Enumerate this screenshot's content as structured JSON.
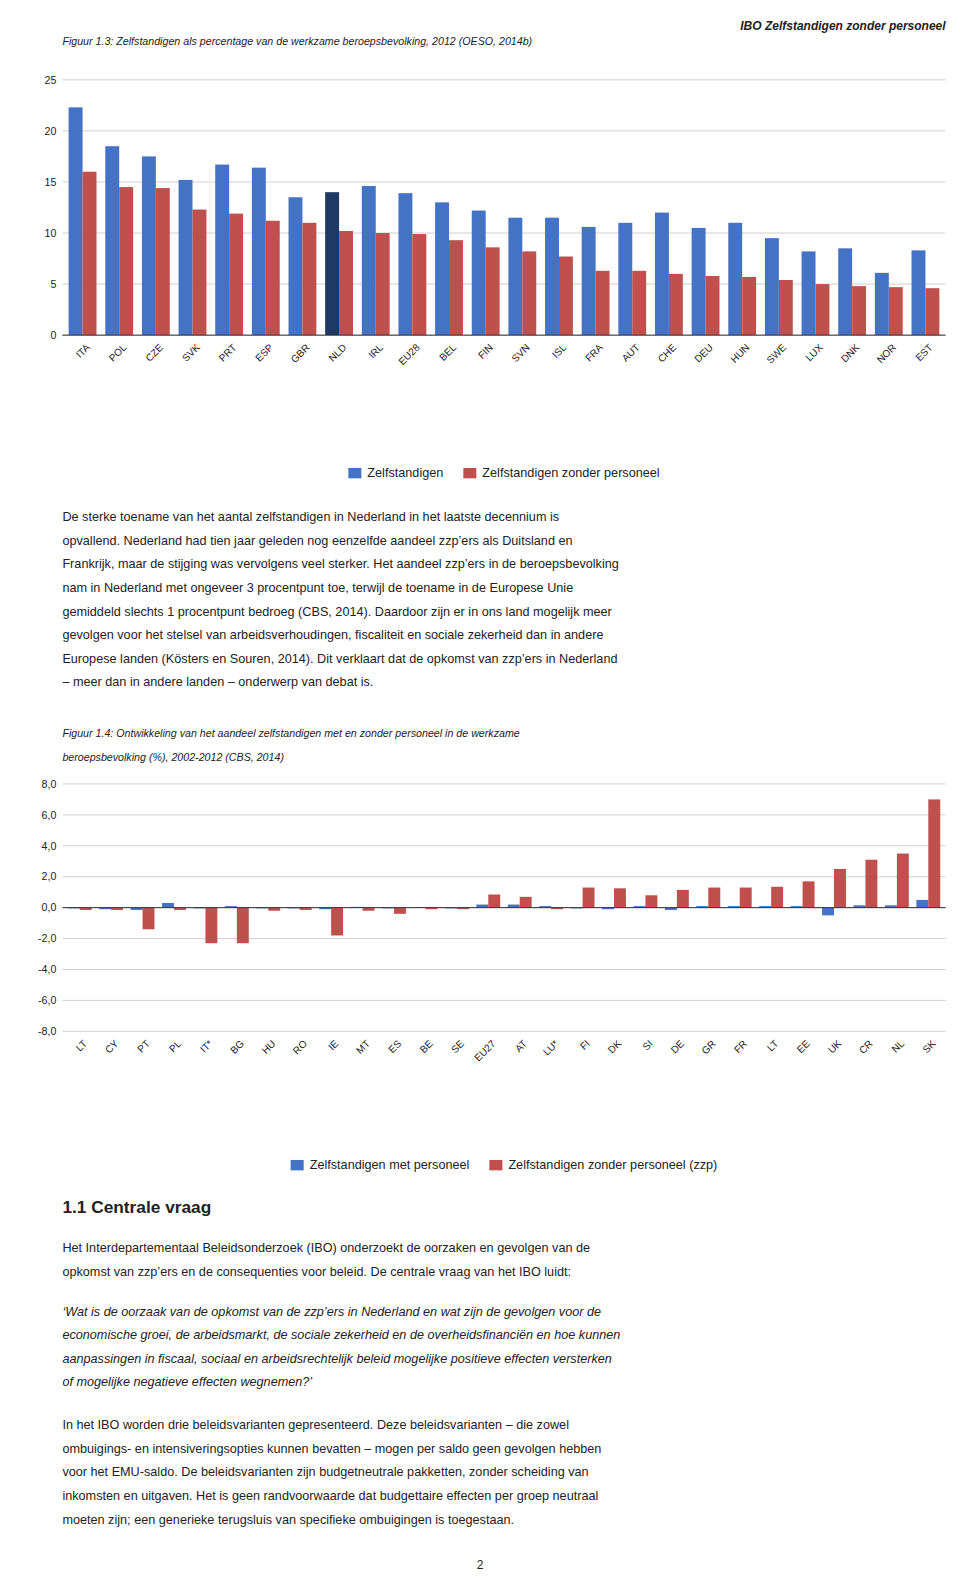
{
  "header": "IBO Zelfstandigen zonder personeel",
  "chart_data": [
    {
      "type": "bar",
      "title": "Figuur 1.3: Zelfstandigen als percentage van de werkzame beroepsbevolking, 2012 (OESO, 2014b)",
      "categories": [
        "ITA",
        "POL",
        "CZE",
        "SVK",
        "PRT",
        "ESP",
        "GBR",
        "NLD",
        "IRL",
        "EU28",
        "BEL",
        "FIN",
        "SVN",
        "ISL",
        "FRA",
        "AUT",
        "CHE",
        "DEU",
        "HUN",
        "SWE",
        "LUX",
        "DNK",
        "NOR",
        "EST"
      ],
      "series": [
        {
          "name": "Zelfstandigen",
          "color": "#4472C4",
          "colors": [
            "#4472C4",
            "#4472C4",
            "#4472C4",
            "#4472C4",
            "#4472C4",
            "#4472C4",
            "#4472C4",
            "#1F3864",
            "#4472C4",
            "#4472C4",
            "#4472C4",
            "#4472C4",
            "#4472C4",
            "#4472C4",
            "#4472C4",
            "#4472C4",
            "#4472C4",
            "#4472C4",
            "#4472C4",
            "#4472C4",
            "#4472C4",
            "#4472C4",
            "#4472C4",
            "#4472C4"
          ],
          "values": [
            22.3,
            18.5,
            17.5,
            15.2,
            16.7,
            16.4,
            13.5,
            14.0,
            14.6,
            13.9,
            13.0,
            12.2,
            11.5,
            11.5,
            10.6,
            11.0,
            12.0,
            10.5,
            11.0,
            9.5,
            8.2,
            8.5,
            6.1,
            8.3
          ]
        },
        {
          "name": "Zelfstandigen zonder personeel",
          "color": "#C0504D",
          "values": [
            16.0,
            14.5,
            14.4,
            12.3,
            11.9,
            11.2,
            11.0,
            10.2,
            10.0,
            9.9,
            9.3,
            8.6,
            8.2,
            7.7,
            6.3,
            6.3,
            6.0,
            5.8,
            5.7,
            5.4,
            5.0,
            4.8,
            4.7,
            4.6
          ]
        }
      ],
      "ylim": [
        0,
        25
      ],
      "yticks": [
        0,
        5,
        10,
        15,
        20,
        25
      ],
      "grid": true,
      "legend": "bottom"
    },
    {
      "type": "bar",
      "title": "Figuur 1.4: Ontwikkeling van het aandeel zelfstandigen met en zonder personeel in de werkzame",
      "subtitle": "beroepsbevolking (%), 2002-2012 (CBS, 2014)",
      "categories": [
        "LT",
        "CY",
        "PT",
        "PL",
        "IT*",
        "BG",
        "HU",
        "RO",
        "IE",
        "MT",
        "ES",
        "BE",
        "SE",
        "EU27",
        "AT",
        "LU*",
        "FI",
        "DK",
        "SI",
        "DE",
        "GR",
        "FR",
        "LT",
        "EE",
        "UK",
        "CR",
        "NL",
        "SK"
      ],
      "series": [
        {
          "name": "Zelfstandigen met personeel",
          "color": "#4472C4",
          "values": [
            -0.05,
            -0.1,
            -0.15,
            0.3,
            -0.05,
            0.1,
            -0.05,
            -0.05,
            -0.1,
            0.05,
            -0.05,
            -0.02,
            -0.05,
            0.2,
            0.2,
            0.1,
            -0.05,
            -0.1,
            0.1,
            -0.15,
            0.1,
            0.1,
            0.1,
            0.1,
            -0.5,
            0.15,
            0.15,
            0.5
          ]
        },
        {
          "name": "Zelfstandigen zonder personeel (zzp)",
          "color": "#C0504D",
          "values": [
            -0.15,
            -0.15,
            -1.4,
            -0.15,
            -2.3,
            -2.3,
            -0.2,
            -0.15,
            -1.8,
            -0.2,
            -0.4,
            -0.1,
            -0.1,
            0.85,
            0.7,
            -0.1,
            1.3,
            1.25,
            0.8,
            1.15,
            1.3,
            1.3,
            1.35,
            1.7,
            2.5,
            3.1,
            3.5,
            7.0
          ]
        }
      ],
      "ylim": [
        -8.0,
        8.0
      ],
      "yticks": [
        {
          "value": -8.0,
          "label": "-8,0"
        },
        {
          "value": -6.0,
          "label": "-6,0"
        },
        {
          "value": -4.0,
          "label": "-4,0"
        },
        {
          "value": -2.0,
          "label": "-2,0"
        },
        {
          "value": 0.0,
          "label": "0,0"
        },
        {
          "value": 2.0,
          "label": "2,0"
        },
        {
          "value": 4.0,
          "label": "4,0"
        },
        {
          "value": 6.0,
          "label": "6,0"
        },
        {
          "value": 8.0,
          "label": "8,0"
        }
      ],
      "grid": true,
      "legend": "bottom"
    }
  ],
  "text1_lines": [
    "De sterke toename van het aantal zelfstandigen in Nederland in het laatste decennium is",
    "opvallend. Nederland had tien jaar geleden nog eenzelfde aandeel zzp’ers als Duitsland en",
    "Frankrijk, maar de stijging was vervolgens veel sterker. Het aandeel zzp’ers in de beroepsbevolking",
    "nam in Nederland met ongeveer 3 procentpunt toe, terwijl de toename in de Europese Unie",
    "gemiddeld slechts 1 procentpunt bedroeg (CBS, 2014). Daardoor zijn er in ons land mogelijk meer",
    "gevolgen voor het stelsel van arbeidsverhoudingen, fiscaliteit en sociale zekerheid dan in andere",
    "Europese landen (Kösters en Souren, 2014). Dit verklaart dat de opkomst van zzp’ers in Nederland",
    "– meer dan in andere landen – onderwerp van debat is."
  ],
  "section_title": "1.1 Centrale vraag",
  "text3_lines": [
    "Het Interdepartementaal Beleidsonderzoek (IBO) onderzoekt de oorzaken en gevolgen van de",
    "opkomst van zzp’ers en de consequenties voor beleid. De centrale vraag van het IBO luidt:"
  ],
  "text4_lines": [
    "‘Wat is de oorzaak van de opkomst van de zzp’ers in Nederland en wat zijn de gevolgen voor de",
    "economische groei, de arbeidsmarkt, de sociale zekerheid en de overheidsfinanciën en hoe kunnen",
    "aanpassingen in fiscaal, sociaal en arbeidsrechtelijk beleid mogelijke positieve effecten versterken",
    "of mogelijke negatieve effecten wegnemen?’"
  ],
  "text5_lines": [
    "In het IBO worden drie beleidsvarianten gepresenteerd. Deze beleidsvarianten – die zowel",
    "ombuigings- en intensiveringsopties kunnen bevatten – mogen per saldo geen gevolgen hebben",
    "voor het EMU-saldo. De beleidsvarianten zijn budgetneutrale pakketten, zonder scheiding van",
    "inkomsten en uitgaven. Het is geen randvoorwaarde dat budgettaire effecten per groep neutraal",
    "moeten zijn; een generieke terugsluis van specifieke ombuigingen is toegestaan."
  ],
  "page_number": "2"
}
